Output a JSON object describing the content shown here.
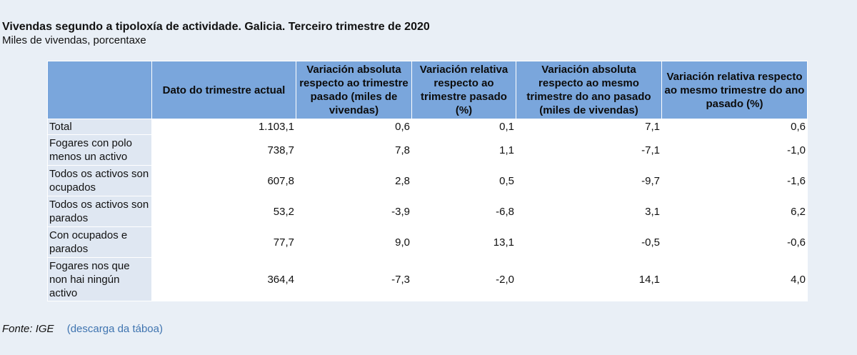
{
  "title": "Vivendas segundo a tipoloxía de actividade. Galicia. Terceiro trimestre de 2020",
  "subtitle": "Miles de vivendas, porcentaxe",
  "table": {
    "headers": [
      "",
      "Dato do trimestre actual",
      "Variación absoluta respecto ao trimestre pasado (miles de vivendas)",
      "Variación relativa respecto ao trimestre pasado (%)",
      "Variación absoluta respecto ao mesmo trimestre do ano pasado (miles de vivendas)",
      "Variación relativa respecto ao mesmo trimestre do ano pasado (%)"
    ],
    "rows": [
      {
        "label": "Total",
        "values": [
          "1.103,1",
          "0,6",
          "0,1",
          "7,1",
          "0,6"
        ]
      },
      {
        "label": "Fogares con polo menos un activo",
        "values": [
          "738,7",
          "7,8",
          "1,1",
          "-7,1",
          "-1,0"
        ]
      },
      {
        "label": "Todos os activos son ocupados",
        "values": [
          "607,8",
          "2,8",
          "0,5",
          "-9,7",
          "-1,6"
        ]
      },
      {
        "label": "Todos os activos son parados",
        "values": [
          "53,2",
          "-3,9",
          "-6,8",
          "3,1",
          "6,2"
        ]
      },
      {
        "label": "Con ocupados e parados",
        "values": [
          "77,7",
          "9,0",
          "13,1",
          "-0,5",
          "-0,6"
        ]
      },
      {
        "label": "Fogares nos que non hai ningún activo",
        "values": [
          "364,4",
          "-7,3",
          "-2,0",
          "14,1",
          "4,0"
        ]
      }
    ]
  },
  "footer": {
    "source": "Fonte: IGE",
    "download_label": "(descarga da táboa)"
  }
}
